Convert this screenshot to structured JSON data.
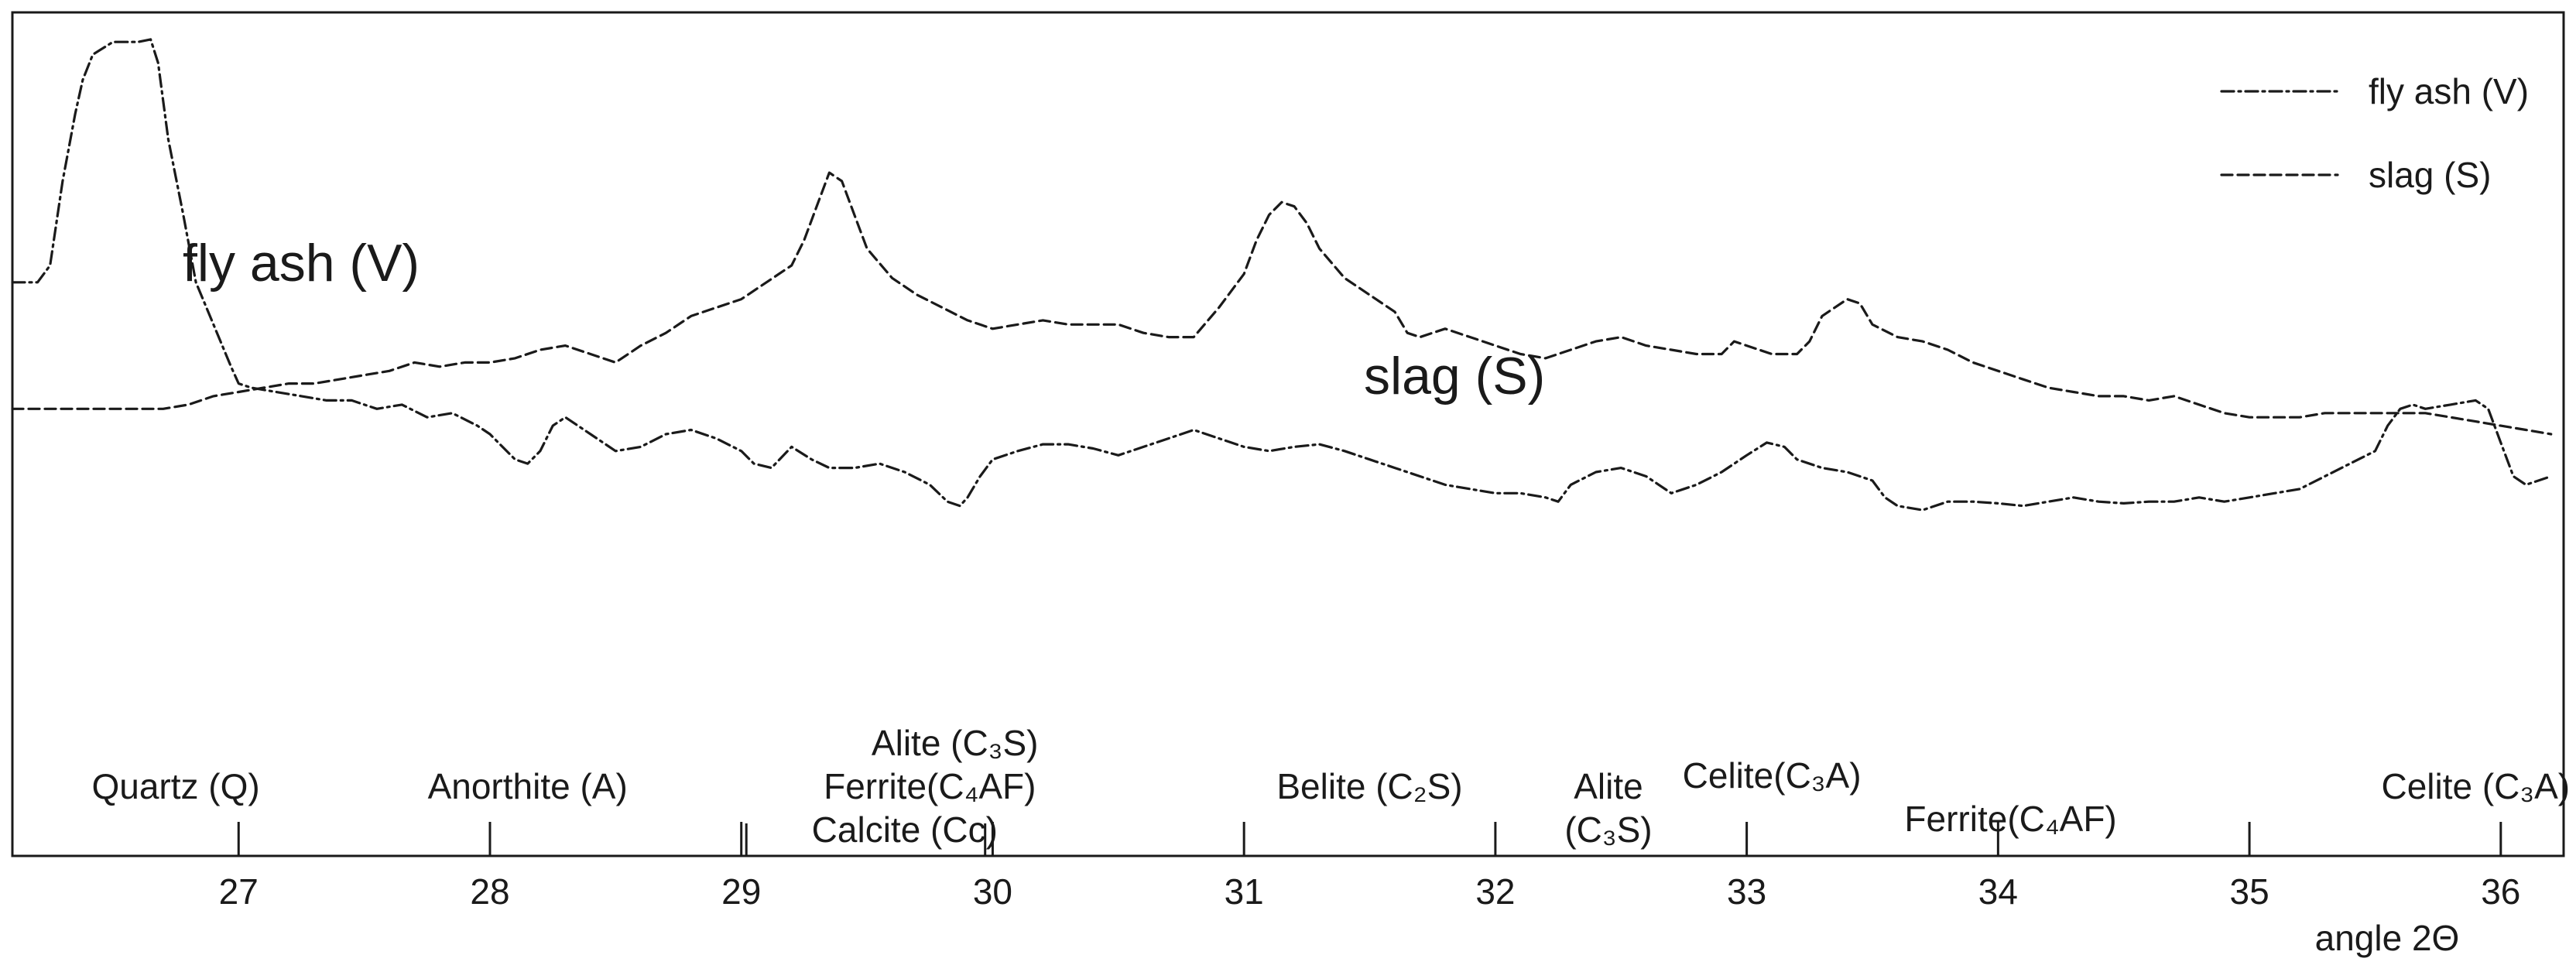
{
  "chart_data": {
    "type": "line",
    "title": "",
    "xlabel": "angle 2Θ",
    "ylabel": "",
    "xlim": [
      26.1,
      36.25
    ],
    "ylim": [
      0,
      100
    ],
    "xticks": [
      27,
      28,
      29,
      30,
      31,
      32,
      33,
      34,
      35,
      36
    ],
    "grid": false,
    "legend_position": "top-right",
    "series": [
      {
        "name": "fly ash (V)",
        "annotation": "fly ash (V)",
        "dash": "dashdot",
        "points": [
          [
            26.1,
            68
          ],
          [
            26.2,
            68
          ],
          [
            26.25,
            70
          ],
          [
            26.3,
            80
          ],
          [
            26.35,
            88
          ],
          [
            26.38,
            92
          ],
          [
            26.42,
            95
          ],
          [
            26.5,
            96.5
          ],
          [
            26.6,
            96.5
          ],
          [
            26.65,
            96.8
          ],
          [
            26.68,
            94
          ],
          [
            26.72,
            85
          ],
          [
            26.78,
            76
          ],
          [
            26.83,
            68
          ],
          [
            26.9,
            63
          ],
          [
            26.97,
            58
          ],
          [
            27.0,
            56
          ],
          [
            27.05,
            55.5
          ],
          [
            27.15,
            55
          ],
          [
            27.25,
            54.5
          ],
          [
            27.35,
            54
          ],
          [
            27.45,
            54
          ],
          [
            27.55,
            53
          ],
          [
            27.65,
            53.5
          ],
          [
            27.75,
            52
          ],
          [
            27.85,
            52.5
          ],
          [
            27.95,
            51
          ],
          [
            28.0,
            50
          ],
          [
            28.05,
            48.5
          ],
          [
            28.1,
            47
          ],
          [
            28.15,
            46.5
          ],
          [
            28.2,
            48
          ],
          [
            28.25,
            51
          ],
          [
            28.3,
            52
          ],
          [
            28.4,
            50
          ],
          [
            28.5,
            48
          ],
          [
            28.6,
            48.5
          ],
          [
            28.7,
            50
          ],
          [
            28.8,
            50.5
          ],
          [
            28.9,
            49.5
          ],
          [
            29.0,
            48
          ],
          [
            29.05,
            46.5
          ],
          [
            29.12,
            46
          ],
          [
            29.2,
            48.5
          ],
          [
            29.28,
            47
          ],
          [
            29.35,
            46
          ],
          [
            29.45,
            46
          ],
          [
            29.55,
            46.5
          ],
          [
            29.65,
            45.5
          ],
          [
            29.75,
            44
          ],
          [
            29.82,
            42
          ],
          [
            29.87,
            41.5
          ],
          [
            29.9,
            42.5
          ],
          [
            29.95,
            45
          ],
          [
            30.0,
            47
          ],
          [
            30.1,
            48
          ],
          [
            30.2,
            48.8
          ],
          [
            30.3,
            48.8
          ],
          [
            30.4,
            48.3
          ],
          [
            30.5,
            47.5
          ],
          [
            30.6,
            48.5
          ],
          [
            30.7,
            49.5
          ],
          [
            30.8,
            50.5
          ],
          [
            30.9,
            49.5
          ],
          [
            31.0,
            48.5
          ],
          [
            31.1,
            48
          ],
          [
            31.2,
            48.5
          ],
          [
            31.3,
            48.8
          ],
          [
            31.4,
            48
          ],
          [
            31.5,
            47
          ],
          [
            31.6,
            46
          ],
          [
            31.7,
            45
          ],
          [
            31.8,
            44
          ],
          [
            31.9,
            43.5
          ],
          [
            32.0,
            43
          ],
          [
            32.1,
            43
          ],
          [
            32.2,
            42.5
          ],
          [
            32.25,
            42
          ],
          [
            32.3,
            44
          ],
          [
            32.4,
            45.5
          ],
          [
            32.5,
            46
          ],
          [
            32.6,
            45
          ],
          [
            32.65,
            44
          ],
          [
            32.7,
            43
          ],
          [
            32.8,
            44
          ],
          [
            32.9,
            45.5
          ],
          [
            33.0,
            47.5
          ],
          [
            33.08,
            49
          ],
          [
            33.15,
            48.5
          ],
          [
            33.2,
            47
          ],
          [
            33.3,
            46
          ],
          [
            33.4,
            45.5
          ],
          [
            33.5,
            44.5
          ],
          [
            33.55,
            42.5
          ],
          [
            33.6,
            41.5
          ],
          [
            33.7,
            41
          ],
          [
            33.8,
            42
          ],
          [
            33.9,
            42
          ],
          [
            34.0,
            41.8
          ],
          [
            34.1,
            41.5
          ],
          [
            34.2,
            42
          ],
          [
            34.3,
            42.5
          ],
          [
            34.4,
            42
          ],
          [
            34.5,
            41.8
          ],
          [
            34.6,
            42
          ],
          [
            34.7,
            42
          ],
          [
            34.8,
            42.5
          ],
          [
            34.9,
            42
          ],
          [
            35.0,
            42.5
          ],
          [
            35.1,
            43
          ],
          [
            35.2,
            43.5
          ],
          [
            35.3,
            45
          ],
          [
            35.4,
            46.5
          ],
          [
            35.5,
            48
          ],
          [
            35.55,
            51
          ],
          [
            35.6,
            53
          ],
          [
            35.65,
            53.5
          ],
          [
            35.7,
            53
          ],
          [
            35.8,
            53.5
          ],
          [
            35.9,
            54
          ],
          [
            35.95,
            53
          ],
          [
            36.0,
            49
          ],
          [
            36.05,
            45
          ],
          [
            36.1,
            44
          ],
          [
            36.2,
            45
          ]
        ]
      },
      {
        "name": "slag (S)",
        "annotation": "slag (S)",
        "dash": "dash",
        "points": [
          [
            26.1,
            53
          ],
          [
            26.2,
            53
          ],
          [
            26.3,
            53
          ],
          [
            26.4,
            53
          ],
          [
            26.5,
            53
          ],
          [
            26.6,
            53
          ],
          [
            26.7,
            53
          ],
          [
            26.8,
            53.5
          ],
          [
            26.9,
            54.5
          ],
          [
            27.0,
            55
          ],
          [
            27.1,
            55.5
          ],
          [
            27.2,
            56
          ],
          [
            27.3,
            56
          ],
          [
            27.4,
            56.5
          ],
          [
            27.5,
            57
          ],
          [
            27.6,
            57.5
          ],
          [
            27.7,
            58.5
          ],
          [
            27.8,
            58
          ],
          [
            27.9,
            58.5
          ],
          [
            28.0,
            58.5
          ],
          [
            28.1,
            59
          ],
          [
            28.2,
            60
          ],
          [
            28.3,
            60.5
          ],
          [
            28.4,
            59.5
          ],
          [
            28.5,
            58.5
          ],
          [
            28.6,
            60.5
          ],
          [
            28.7,
            62
          ],
          [
            28.8,
            64
          ],
          [
            28.9,
            65
          ],
          [
            29.0,
            66
          ],
          [
            29.1,
            68
          ],
          [
            29.2,
            70
          ],
          [
            29.25,
            73
          ],
          [
            29.3,
            77
          ],
          [
            29.35,
            81
          ],
          [
            29.4,
            80
          ],
          [
            29.45,
            76
          ],
          [
            29.5,
            72
          ],
          [
            29.6,
            68.5
          ],
          [
            29.7,
            66.5
          ],
          [
            29.8,
            65
          ],
          [
            29.9,
            63.5
          ],
          [
            30.0,
            62.5
          ],
          [
            30.1,
            63
          ],
          [
            30.2,
            63.5
          ],
          [
            30.3,
            63
          ],
          [
            30.4,
            63
          ],
          [
            30.5,
            63
          ],
          [
            30.6,
            62
          ],
          [
            30.7,
            61.5
          ],
          [
            30.8,
            61.5
          ],
          [
            30.9,
            65
          ],
          [
            31.0,
            69
          ],
          [
            31.05,
            73
          ],
          [
            31.1,
            76
          ],
          [
            31.15,
            77.5
          ],
          [
            31.2,
            77
          ],
          [
            31.25,
            75
          ],
          [
            31.3,
            72
          ],
          [
            31.4,
            68.5
          ],
          [
            31.5,
            66.5
          ],
          [
            31.6,
            64.5
          ],
          [
            31.65,
            62
          ],
          [
            31.7,
            61.5
          ],
          [
            31.8,
            62.5
          ],
          [
            31.9,
            61.5
          ],
          [
            32.0,
            60.5
          ],
          [
            32.1,
            59.5
          ],
          [
            32.2,
            59
          ],
          [
            32.3,
            60
          ],
          [
            32.4,
            61
          ],
          [
            32.5,
            61.5
          ],
          [
            32.6,
            60.5
          ],
          [
            32.7,
            60
          ],
          [
            32.8,
            59.5
          ],
          [
            32.9,
            59.5
          ],
          [
            32.95,
            61
          ],
          [
            33.0,
            60.5
          ],
          [
            33.1,
            59.5
          ],
          [
            33.2,
            59.5
          ],
          [
            33.25,
            61
          ],
          [
            33.3,
            64
          ],
          [
            33.4,
            66
          ],
          [
            33.45,
            65.5
          ],
          [
            33.5,
            63
          ],
          [
            33.6,
            61.5
          ],
          [
            33.7,
            61
          ],
          [
            33.8,
            60
          ],
          [
            33.9,
            58.5
          ],
          [
            34.0,
            57.5
          ],
          [
            34.1,
            56.5
          ],
          [
            34.2,
            55.5
          ],
          [
            34.3,
            55
          ],
          [
            34.4,
            54.5
          ],
          [
            34.5,
            54.5
          ],
          [
            34.6,
            54
          ],
          [
            34.7,
            54.5
          ],
          [
            34.8,
            53.5
          ],
          [
            34.9,
            52.5
          ],
          [
            35.0,
            52
          ],
          [
            35.1,
            52
          ],
          [
            35.2,
            52
          ],
          [
            35.3,
            52.5
          ],
          [
            35.4,
            52.5
          ],
          [
            35.5,
            52.5
          ],
          [
            35.6,
            52.5
          ],
          [
            35.7,
            52.5
          ],
          [
            35.8,
            52
          ],
          [
            35.9,
            51.5
          ],
          [
            36.0,
            51
          ],
          [
            36.1,
            50.5
          ],
          [
            36.2,
            50
          ]
        ]
      }
    ],
    "phase_labels": [
      {
        "text": "Quartz (Q)",
        "x": 26.75,
        "row": 1
      },
      {
        "text": "Anorthite (A)",
        "x": 28.15,
        "row": 1
      },
      {
        "text": "Alite (C₃S)",
        "x": 29.85,
        "row": 0
      },
      {
        "text": "Ferrite(C₄AF)",
        "x": 29.75,
        "row": 1
      },
      {
        "text": "Calcite (Cc)",
        "x": 29.65,
        "row": 2
      },
      {
        "text": "Belite (C₂S)",
        "x": 31.5,
        "row": 1
      },
      {
        "text": "Alite",
        "x": 32.45,
        "row": 1
      },
      {
        "text": "(C₃S)",
        "x": 32.45,
        "row": 2
      },
      {
        "text": "Celite(C₃A)",
        "x": 33.1,
        "row": 0.75
      },
      {
        "text": "Ferrite(C₄AF)",
        "x": 34.05,
        "row": 1.75
      },
      {
        "text": "Celite (C₃A)",
        "x": 35.9,
        "row": 1
      }
    ],
    "phase_separators": [
      29.02,
      29.97
    ]
  }
}
